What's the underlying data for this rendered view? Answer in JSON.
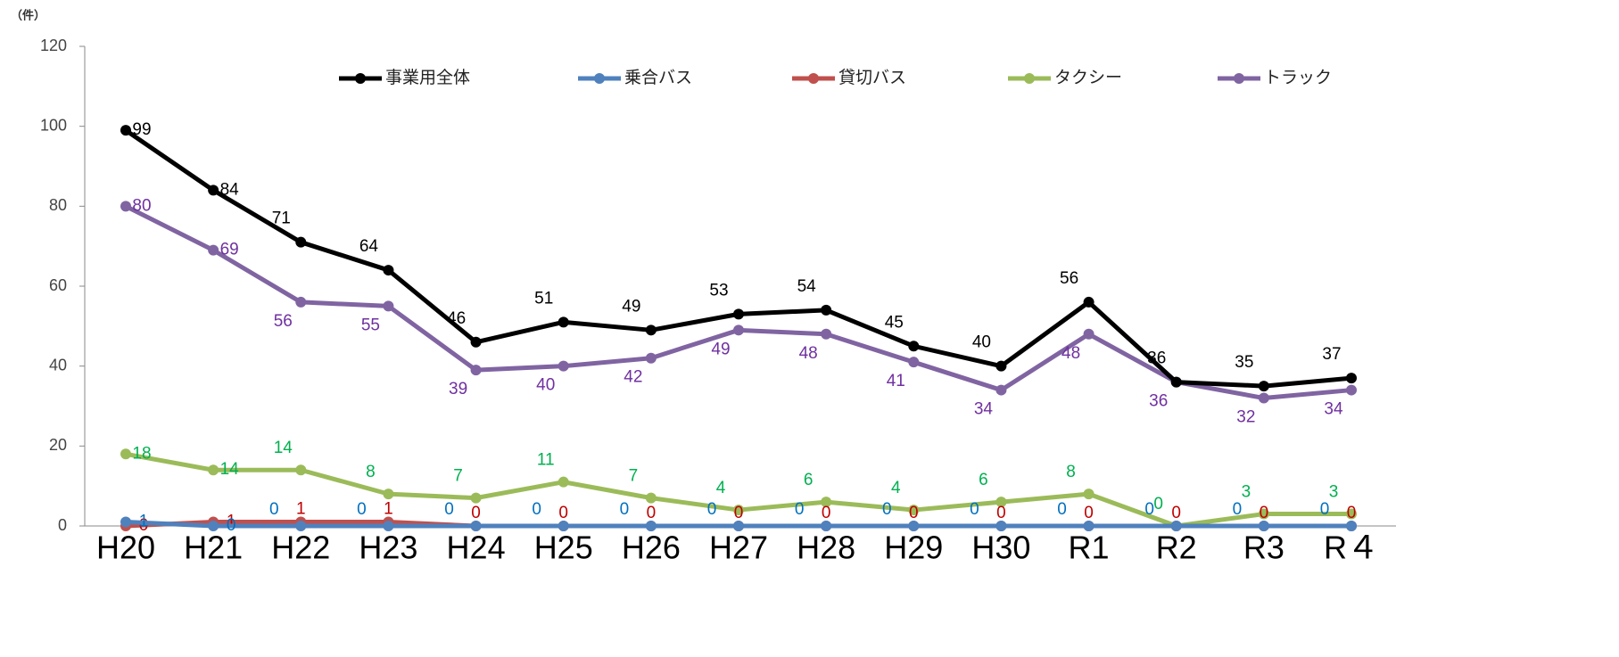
{
  "chart_data": {
    "type": "line",
    "unit_label": "（件）",
    "categories": [
      "H20",
      "H21",
      "H22",
      "H23",
      "H24",
      "H25",
      "H26",
      "H27",
      "H28",
      "H29",
      "H30",
      "R1",
      "R2",
      "R3",
      "R４"
    ],
    "series": [
      {
        "name": "事業用全体",
        "color": "#000000",
        "label_color": "#000000",
        "values": [
          99,
          84,
          71,
          64,
          46,
          51,
          49,
          53,
          54,
          45,
          40,
          56,
          36,
          35,
          37
        ]
      },
      {
        "name": "乗合バス",
        "color": "#4f81bd",
        "label_color": "#0070c0",
        "values": [
          1,
          0,
          0,
          0,
          0,
          0,
          0,
          0,
          0,
          0,
          0,
          0,
          0,
          0,
          0
        ]
      },
      {
        "name": "貸切バス",
        "color": "#c0504d",
        "label_color": "#c00000",
        "values": [
          0,
          1,
          1,
          1,
          0,
          0,
          0,
          0,
          0,
          0,
          0,
          0,
          0,
          0,
          0
        ]
      },
      {
        "name": "タクシー",
        "color": "#9bbb59",
        "label_color": "#00b050",
        "values": [
          18,
          14,
          14,
          8,
          7,
          11,
          7,
          4,
          6,
          4,
          6,
          8,
          0,
          3,
          3
        ]
      },
      {
        "name": "トラック",
        "color": "#8064a2",
        "label_color": "#7030a0",
        "values": [
          80,
          69,
          56,
          55,
          39,
          40,
          42,
          49,
          48,
          41,
          34,
          48,
          36,
          32,
          34
        ]
      }
    ],
    "ylim": [
      0,
      120
    ],
    "yticks": [
      0,
      20,
      40,
      60,
      80,
      100,
      120
    ],
    "grid": false
  }
}
